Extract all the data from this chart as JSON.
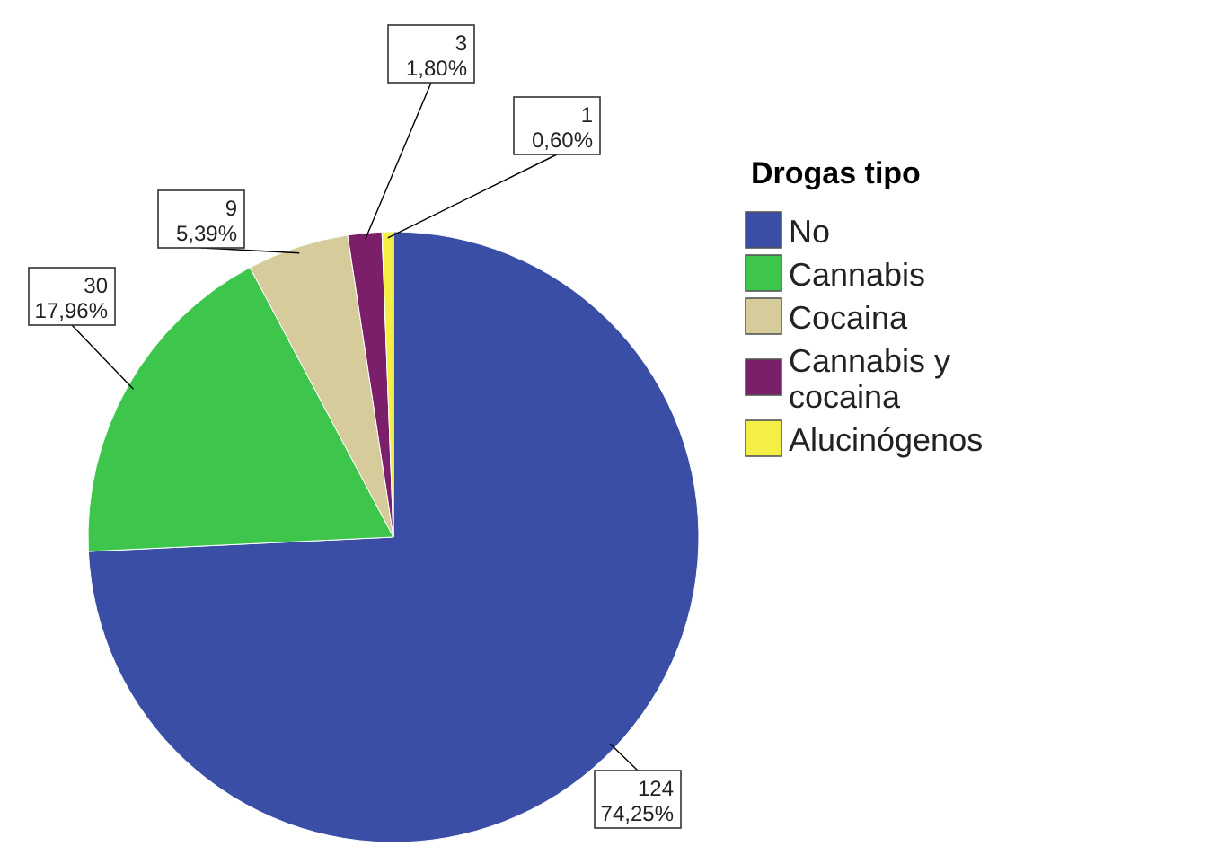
{
  "chart_data": {
    "type": "pie",
    "legend_title": "Drogas tipo",
    "legend": "right",
    "categories": [
      "No",
      "Cannabis",
      "Cocaina",
      "Cannabis y cocaina",
      "Alucinógenos"
    ],
    "values": [
      124,
      30,
      9,
      3,
      1
    ],
    "colors": [
      "#3b4ea6",
      "#3dc64b",
      "#d6cb9b",
      "#7b1f6b",
      "#f4ef45"
    ],
    "value_labels": [
      "124\n74,25%",
      "30\n17,96%",
      "9\n5,39%",
      "3\n1,80%",
      "1\n0,60%"
    ]
  }
}
